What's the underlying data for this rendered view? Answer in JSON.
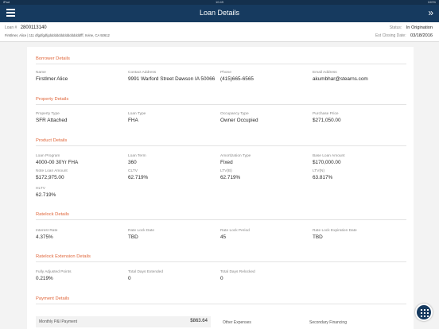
{
  "statusbar": {
    "left": "iPad",
    "time": "10:49",
    "right": "100%"
  },
  "navbar": {
    "title": "Loan Details",
    "expand_glyph": "»",
    "menu_icon": "hamburger-icon"
  },
  "loan": {
    "number_label": "Loan #",
    "number": "2800113140",
    "borrower_line": "Firstlmer, Alice  |  111 dfgdfgdfgdddddddddddddddddfff, Irvine, CA 92612",
    "status_label": "Status:",
    "status": "In Origination",
    "closing_label": "Est Closing Date:",
    "closing_date": "03/18/2016"
  },
  "sections": {
    "borrower": "Borrower Details",
    "property": "Property Details",
    "product": "Product Details",
    "ratelock": "Ratelock Details",
    "extension": "Ratelock Extension Details",
    "payment": "Payment Details"
  },
  "borrower": {
    "name_label": "Name",
    "name": "Firstlmer  Alice",
    "address_label": "Contact Address",
    "address": "9991 Warford Street Dawson IA 50066",
    "phone_label": "Phone",
    "phone": "(415)665-6565",
    "email_label": "Email Address",
    "email": "akumbhar@stearns.com"
  },
  "property": {
    "type_label": "Property Type",
    "type": "SFR Attached",
    "loan_type_label": "Loan Type",
    "loan_type": "FHA",
    "occupancy_label": "Occupancy Type",
    "occupancy": "Owner Occupied",
    "price_label": "Purchase Price",
    "price": "$271,050.00"
  },
  "product": {
    "program_label": "Loan Program",
    "program": "4000-00 30Yr FHA",
    "term_label": "Loan Term",
    "term": "360",
    "amort_label": "Amortization Type",
    "amort": "Fixed",
    "base_label": "Base Loan Amount",
    "base": "$170,000.00",
    "note_label": "Note Loan Amount",
    "note": "$172,975.00",
    "cltv_label": "CLTV",
    "cltv": "62.719%",
    "ltvb_label": "LTV(B)",
    "ltvb": "62.719%",
    "ltvn_label": "LTV(N)",
    "ltvn": "63.817%",
    "hltv_label": "HLTV",
    "hltv": "62.719%"
  },
  "ratelock": {
    "rate_label": "Interest Rate",
    "rate": "4.375%",
    "lockdate_label": "Rate Lock Date",
    "lockdate": "TBD",
    "period_label": "Rate Lock Period",
    "period": "45",
    "exp_label": "Rate Lock Expiration Date",
    "exp": "TBD"
  },
  "extension": {
    "points_label": "Fully Adjusted Points",
    "points": "0.219%",
    "extended_label": "Total Days Extended",
    "extended": "0",
    "relocked_label": "Total Days Relocked",
    "relocked": "0"
  },
  "payment": {
    "monthly_label": "Monthly P&I Payment",
    "monthly": "$863.64",
    "other_label": "Other Expenses",
    "secondary_label": "Secondary Financing"
  },
  "fab_icon": "grid-icon"
}
